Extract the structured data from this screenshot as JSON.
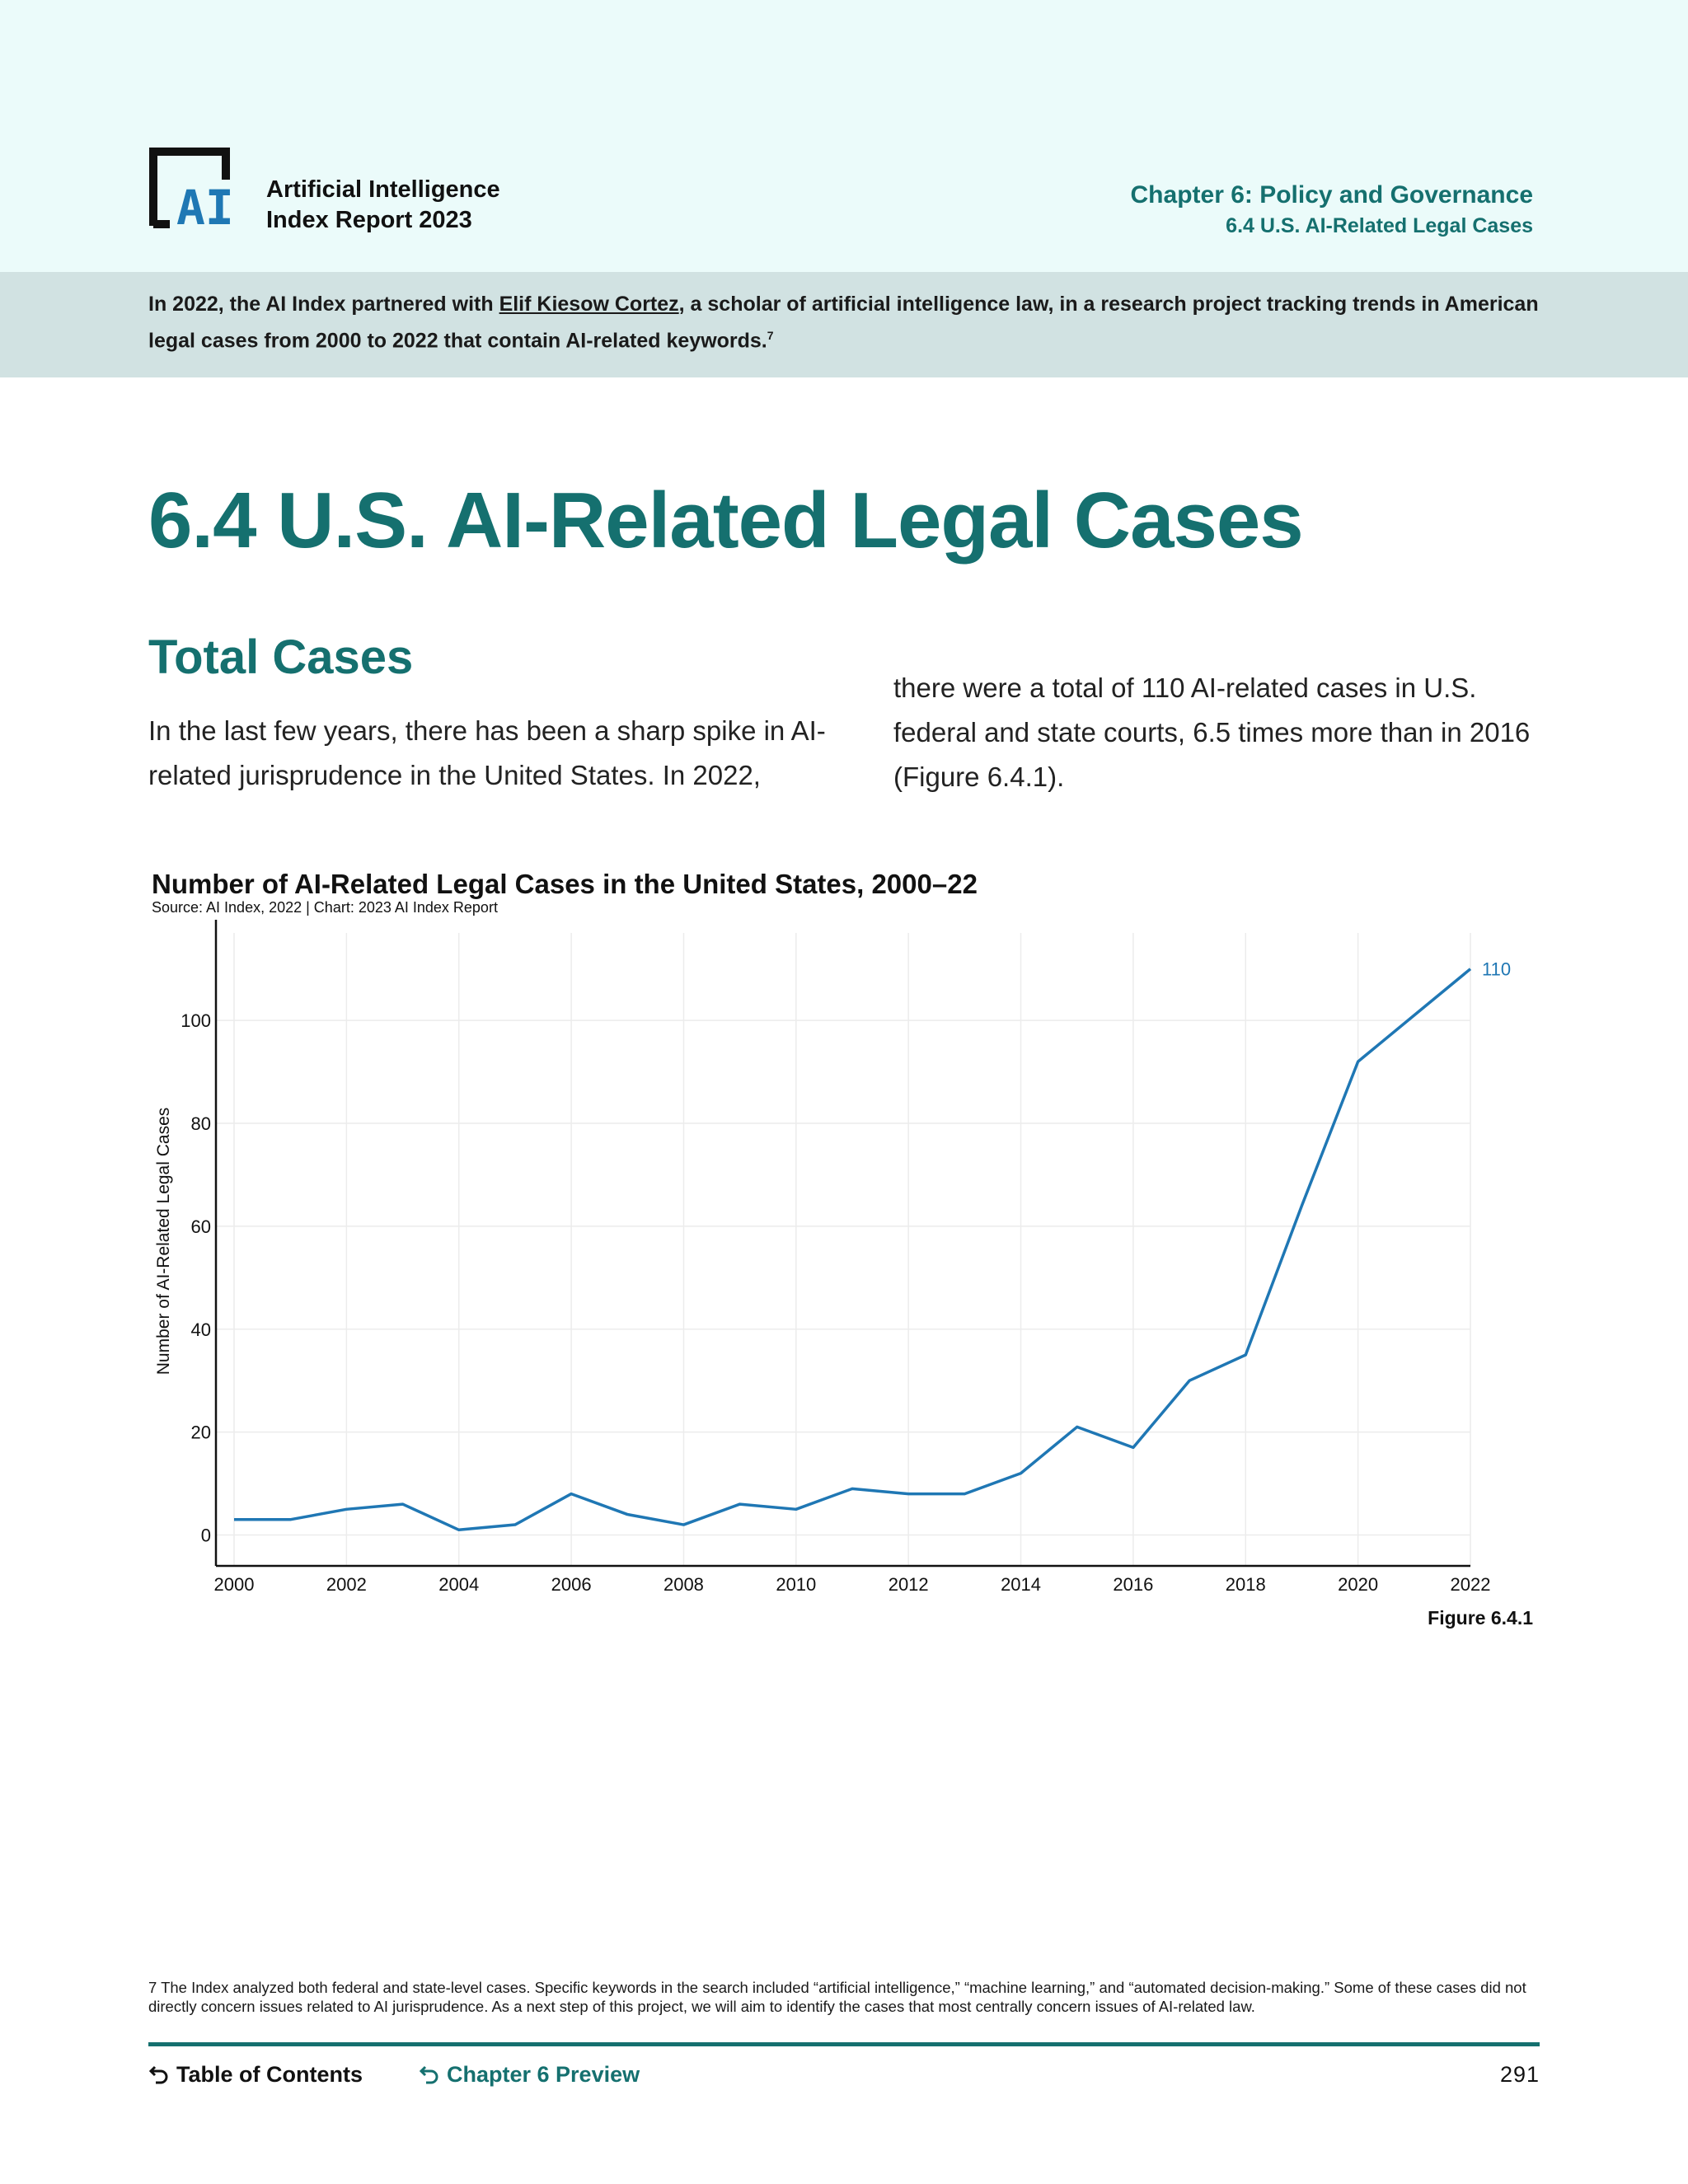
{
  "header": {
    "logo_text": "AI",
    "brand_line1": "Artificial Intelligence",
    "brand_line2": "Index Report 2023",
    "chapter_title": "Chapter 6: Policy and Governance",
    "chapter_section": "6.4 U.S. AI-Related Legal Cases",
    "accent_color": "#15706f",
    "logo_blue": "#1f78b4"
  },
  "intro": {
    "text_before_link": "In 2022, the AI Index partnered with ",
    "link_text": "Elif Kiesow Cortez",
    "text_after_link": ", a scholar of artificial intelligence law, in a research project tracking trends in American legal cases from 2000 to 2022 that contain AI-related keywords.",
    "footnote_ref": "7"
  },
  "page_title": "6.4 U.S. AI-Related Legal Cases",
  "section": {
    "title": "Total Cases",
    "body_left": "In the last few years, there has been a sharp spike in AI-related jurisprudence in the United States. In 2022,",
    "body_right": "there were a total of 110 AI-related cases in U.S. federal and state courts, 6.5 times more than in 2016 (Figure 6.4.1)."
  },
  "chart_data": {
    "type": "line",
    "title": "Number of AI-Related Legal Cases in the United States, 2000–22",
    "source": "Source: AI Index, 2022 | Chart: 2023 AI Index Report",
    "xlabel": "",
    "ylabel": "Number of AI-Related Legal Cases",
    "x": [
      2000,
      2001,
      2002,
      2003,
      2004,
      2005,
      2006,
      2007,
      2008,
      2009,
      2010,
      2011,
      2012,
      2013,
      2014,
      2015,
      2016,
      2017,
      2018,
      2019,
      2020,
      2021,
      2022
    ],
    "series": [
      {
        "name": "",
        "values": [
          3,
          3,
          5,
          6,
          1,
          2,
          8,
          4,
          2,
          6,
          5,
          9,
          8,
          8,
          12,
          21,
          17,
          30,
          35,
          64,
          92,
          101,
          110
        ],
        "color": "#1f77b4"
      }
    ],
    "x_ticks": [
      2000,
      2002,
      2004,
      2006,
      2008,
      2010,
      2012,
      2014,
      2016,
      2018,
      2020,
      2022
    ],
    "y_ticks": [
      0,
      20,
      40,
      60,
      80,
      100
    ],
    "xlim": [
      2000,
      2022
    ],
    "ylim": [
      -6,
      117
    ],
    "grid": true,
    "end_label": "110"
  },
  "figure_label": "Figure 6.4.1",
  "footnote": "7 The Index analyzed both federal and state-level cases. Specific keywords in the search included “artificial intelligence,” “machine learning,” and “automated decision-making.” Some of these cases did not directly concern issues related to AI jurisprudence. As a next step of this project, we will aim to identify the cases that most centrally concern issues of AI-related law.",
  "footer": {
    "toc_label": "Table of Contents",
    "preview_label": "Chapter 6 Preview",
    "page_number": "291"
  }
}
